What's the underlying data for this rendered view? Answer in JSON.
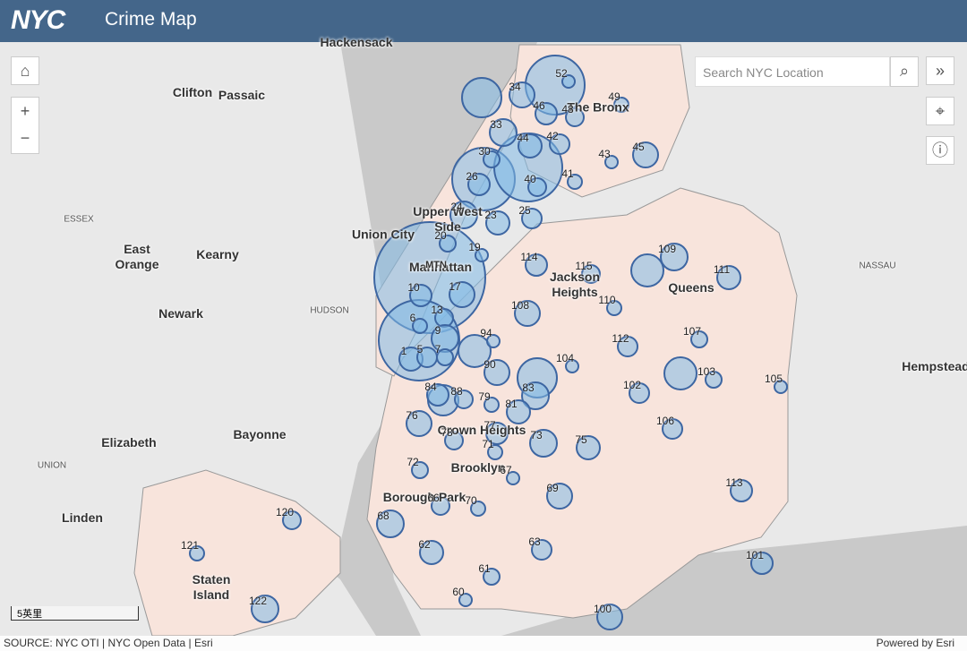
{
  "header": {
    "logo": "NYC",
    "title": "Crime Map"
  },
  "search": {
    "placeholder": "Search NYC Location"
  },
  "map": {
    "places": [
      "Hackensack",
      "Clifton",
      "Passaic",
      "ESSEX",
      "East Orange",
      "Kearny",
      "Newark",
      "Union City",
      "HUDSON",
      "Elizabeth",
      "Bayonne",
      "UNION",
      "Linden",
      "NASSAU",
      "Hempstead",
      "The Bronx",
      "Upper West Side",
      "Manhattan",
      "Jackson Heights",
      "Queens",
      "Crown Heights",
      "Brooklyn",
      "Borough Park",
      "Staten Island",
      "MTN"
    ],
    "precincts": [
      "52",
      "34",
      "46",
      "48",
      "49",
      "33",
      "44",
      "42",
      "30",
      "43",
      "45",
      "26",
      "40",
      "41",
      "24",
      "23",
      "25",
      "20",
      "19",
      "17",
      "10",
      "13",
      "6",
      "9",
      "1",
      "5",
      "7",
      "94",
      "108",
      "114",
      "115",
      "110",
      "109",
      "111",
      "112",
      "107",
      "104",
      "90",
      "84",
      "88",
      "79",
      "83",
      "81",
      "102",
      "103",
      "105",
      "76",
      "77",
      "78",
      "71",
      "73",
      "75",
      "106",
      "72",
      "67",
      "69",
      "113",
      "66",
      "70",
      "68",
      "62",
      "63",
      "61",
      "60",
      "100",
      "101",
      "120",
      "121",
      "122"
    ],
    "scale": "5英里"
  },
  "footer": {
    "source": "SOURCE: NYC OTI | NYC Open Data | Esri",
    "powered": "Powered by Esri"
  }
}
